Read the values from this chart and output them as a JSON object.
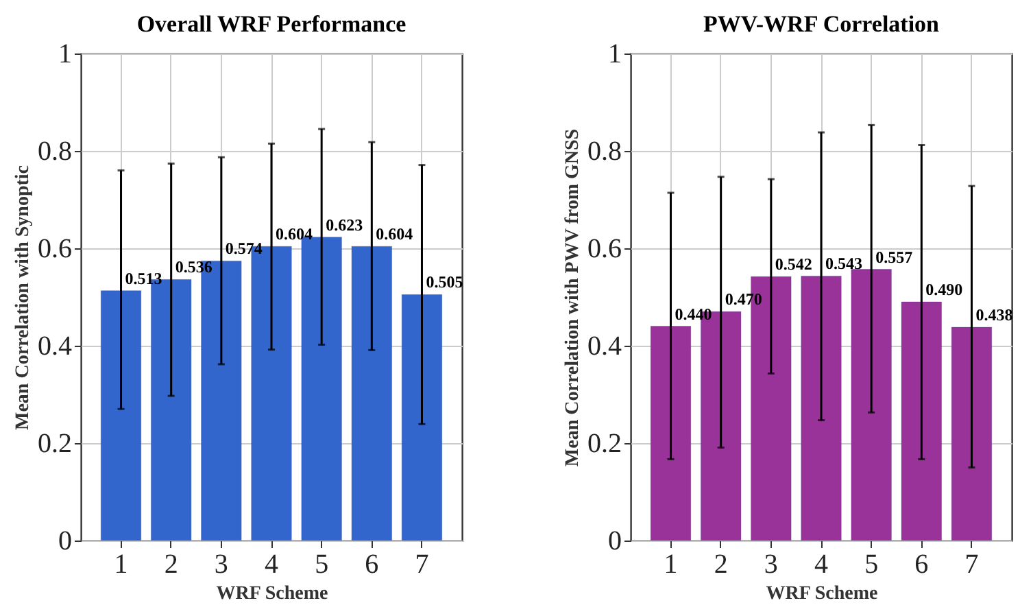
{
  "chart_data": [
    {
      "type": "bar",
      "title": "Overall WRF Performance",
      "xlabel": "WRF Scheme",
      "ylabel": "Mean Correlation with Synoptic",
      "categories": [
        "1",
        "2",
        "3",
        "4",
        "5",
        "6",
        "7"
      ],
      "series": [
        {
          "color": "#3366cc",
          "values": [
            0.513,
            0.536,
            0.574,
            0.604,
            0.623,
            0.604,
            0.505
          ],
          "errors": [
            [
              0.27,
              0.76
            ],
            [
              0.297,
              0.774
            ],
            [
              0.362,
              0.787
            ],
            [
              0.392,
              0.815
            ],
            [
              0.402,
              0.845
            ],
            [
              0.391,
              0.818
            ],
            [
              0.239,
              0.771
            ]
          ],
          "value_labels": [
            "0.513",
            "0.536",
            "0.574",
            "0.604",
            "0.623",
            "0.604",
            "0.505"
          ]
        }
      ],
      "ylim": [
        0,
        1
      ],
      "yticks": [
        0,
        0.2,
        0.4,
        0.6,
        0.8,
        1
      ],
      "grid": true
    },
    {
      "type": "bar",
      "title": "PWV-WRF Correlation",
      "xlabel": "WRF Scheme",
      "ylabel": "Mean Correlation with PWV from GNSS",
      "categories": [
        "1",
        "2",
        "3",
        "4",
        "5",
        "6",
        "7"
      ],
      "series": [
        {
          "color": "#993399",
          "values": [
            0.44,
            0.47,
            0.542,
            0.543,
            0.557,
            0.49,
            0.438
          ],
          "errors": [
            [
              0.167,
              0.714
            ],
            [
              0.191,
              0.747
            ],
            [
              0.343,
              0.742
            ],
            [
              0.247,
              0.838
            ],
            [
              0.263,
              0.853
            ],
            [
              0.167,
              0.812
            ],
            [
              0.15,
              0.728
            ]
          ],
          "value_labels": [
            "0.440",
            "0.470",
            "0.542",
            "0.543",
            "0.557",
            "0.490",
            "0.438"
          ]
        }
      ],
      "ylim": [
        0,
        1
      ],
      "yticks": [
        0,
        0.2,
        0.4,
        0.6,
        0.8,
        1
      ],
      "grid": true
    }
  ]
}
